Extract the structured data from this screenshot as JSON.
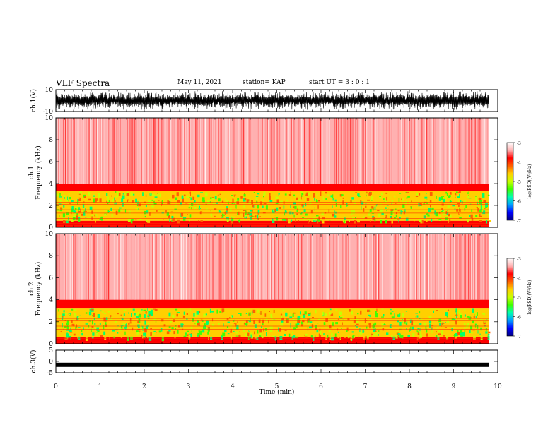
{
  "header": {
    "title": "VLF Spectra",
    "date": "May 11, 2021",
    "station": "station= KAP",
    "start": "start UT = 3 : 0 : 1"
  },
  "colors": {
    "colormap": [
      "#00007f",
      "#0000ff",
      "#00a0ff",
      "#00ffb0",
      "#40ff00",
      "#c8ff00",
      "#ffd000",
      "#ff6000",
      "#ff0000",
      "#ffb0b0",
      "#ffffff"
    ]
  },
  "colorbars": [
    {
      "ticks": [
        "-3",
        "-4",
        "-5",
        "-6",
        "-7"
      ],
      "label": "log(PSD)(V²/Hz)"
    },
    {
      "ticks": [
        "-3",
        "-4",
        "-5",
        "-6",
        "-7"
      ],
      "label": "log(PSD)(V²/Hz)"
    }
  ],
  "chart_data": [
    {
      "type": "line",
      "ylabel": "ch.1(V)",
      "ylim": [
        -10,
        10
      ],
      "yticks": [
        "10",
        "-10"
      ],
      "xlim": [
        0,
        9.8
      ],
      "description_level": "dense noise waveform filling most of range"
    },
    {
      "type": "heatmap",
      "ylabel": "ch.1 Frequency (kHz)",
      "ylim": [
        0,
        10
      ],
      "yticks": [
        "10",
        "8",
        "6",
        "4",
        "2",
        "0"
      ],
      "xlim": [
        0,
        9.8
      ],
      "zlim": [
        -7,
        -3
      ],
      "bands": [
        {
          "from_khz": 0,
          "to_khz": 0.6,
          "level": -4
        },
        {
          "from_khz": 0.6,
          "to_khz": 3.3,
          "level": -4.8
        },
        {
          "from_khz": 3.3,
          "to_khz": 4.0,
          "level": -3.8
        },
        {
          "from_khz": 4.0,
          "to_khz": 10,
          "level": -3.4
        }
      ]
    },
    {
      "type": "heatmap",
      "ylabel": "ch.2 Frequency (kHz)",
      "ylim": [
        0,
        10
      ],
      "yticks": [
        "10",
        "8",
        "6",
        "4",
        "2",
        "0"
      ],
      "xlim": [
        0,
        9.8
      ],
      "zlim": [
        -7,
        -3
      ],
      "bands": [
        {
          "from_khz": 0,
          "to_khz": 0.6,
          "level": -4
        },
        {
          "from_khz": 0.6,
          "to_khz": 3.2,
          "level": -4.8
        },
        {
          "from_khz": 3.2,
          "to_khz": 4.0,
          "level": -3.8
        },
        {
          "from_khz": 4.0,
          "to_khz": 10,
          "level": -3.4
        }
      ]
    },
    {
      "type": "line",
      "ylabel": "ch.3(V)",
      "ylim": [
        -5,
        5
      ],
      "yticks": [
        "5",
        "0",
        "-5"
      ],
      "xlim": [
        0,
        9.8
      ],
      "level": -1.5
    }
  ],
  "xaxis": {
    "label": "Time (min)",
    "ticks": [
      "0",
      "1",
      "2",
      "3",
      "4",
      "5",
      "6",
      "7",
      "8",
      "9",
      "10"
    ],
    "range": [
      0,
      10
    ]
  }
}
